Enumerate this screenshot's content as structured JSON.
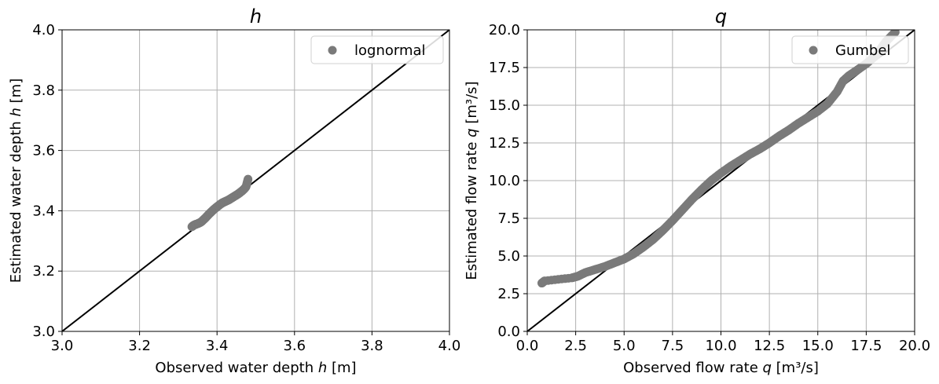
{
  "chart_data": [
    {
      "type": "scatter",
      "title": "h",
      "xlabel_pre": "Observed water depth ",
      "xlabel_var": "h",
      "xlabel_post": " [m]",
      "ylabel_pre": "Estimated water depth ",
      "ylabel_var": "h",
      "ylabel_post": " [m]",
      "xlim": [
        3.0,
        4.0
      ],
      "ylim": [
        3.0,
        4.0
      ],
      "xticks": [
        3.0,
        3.2,
        3.4,
        3.6,
        3.8,
        4.0
      ],
      "yticks": [
        3.0,
        3.2,
        3.4,
        3.6,
        3.8,
        4.0
      ],
      "tick_labels_x": [
        "3.0",
        "3.2",
        "3.4",
        "3.6",
        "3.8",
        "4.0"
      ],
      "tick_labels_y": [
        "3.0",
        "3.2",
        "3.4",
        "3.6",
        "3.8",
        "4.0"
      ],
      "grid": true,
      "legend": {
        "label": "lognormal",
        "position": "top-right"
      },
      "reference_line": {
        "x": [
          3.0,
          4.0
        ],
        "y": [
          3.0,
          4.0
        ]
      },
      "series": [
        {
          "name": "lognormal",
          "color": "#7a7a7a",
          "x": [
            3.335,
            3.34,
            3.345,
            3.35,
            3.355,
            3.36,
            3.365,
            3.37,
            3.375,
            3.38,
            3.385,
            3.39,
            3.395,
            3.4,
            3.405,
            3.41,
            3.415,
            3.42,
            3.425,
            3.43,
            3.435,
            3.44,
            3.445,
            3.45,
            3.455,
            3.46,
            3.465,
            3.47,
            3.475,
            3.48
          ],
          "y": [
            3.347,
            3.352,
            3.355,
            3.357,
            3.36,
            3.364,
            3.37,
            3.376,
            3.383,
            3.39,
            3.396,
            3.402,
            3.408,
            3.413,
            3.418,
            3.423,
            3.427,
            3.43,
            3.433,
            3.436,
            3.44,
            3.444,
            3.448,
            3.452,
            3.456,
            3.461,
            3.466,
            3.472,
            3.48,
            3.505
          ]
        }
      ]
    },
    {
      "type": "scatter",
      "title": "q",
      "xlabel_pre": "Observed flow rate ",
      "xlabel_var": "q",
      "xlabel_post": " [m³/s]",
      "ylabel_pre": "Estimated flow rate ",
      "ylabel_var": "q",
      "ylabel_post": " [m³/s]",
      "xlim": [
        0.0,
        20.0
      ],
      "ylim": [
        0.0,
        20.0
      ],
      "xticks": [
        0.0,
        2.5,
        5.0,
        7.5,
        10.0,
        12.5,
        15.0,
        17.5,
        20.0
      ],
      "yticks": [
        0.0,
        2.5,
        5.0,
        7.5,
        10.0,
        12.5,
        15.0,
        17.5,
        20.0
      ],
      "tick_labels_x": [
        "0.0",
        "2.5",
        "5.0",
        "7.5",
        "10.0",
        "12.5",
        "15.0",
        "17.5",
        "20.0"
      ],
      "tick_labels_y": [
        "0.0",
        "2.5",
        "5.0",
        "7.5",
        "10.0",
        "12.5",
        "15.0",
        "17.5",
        "20.0"
      ],
      "grid": true,
      "legend": {
        "label": "Gumbel",
        "position": "top-right"
      },
      "reference_line": {
        "x": [
          0.0,
          20.0
        ],
        "y": [
          0.0,
          20.0
        ]
      },
      "series": [
        {
          "name": "Gumbel",
          "color": "#7a7a7a",
          "x": [
            0.75,
            0.9,
            2.3,
            2.6,
            3.0,
            3.5,
            4.0,
            4.5,
            5.0,
            5.5,
            6.0,
            6.5,
            7.0,
            7.5,
            8.0,
            8.5,
            9.0,
            9.5,
            10.0,
            10.5,
            11.0,
            11.5,
            12.0,
            12.5,
            13.0,
            13.5,
            14.0,
            14.5,
            15.0,
            15.5,
            16.0,
            16.3,
            16.6,
            17.0,
            17.5,
            18.0,
            18.5,
            19.0
          ],
          "y": [
            3.2,
            3.35,
            3.55,
            3.65,
            3.9,
            4.1,
            4.3,
            4.55,
            4.8,
            5.15,
            5.6,
            6.1,
            6.7,
            7.35,
            8.05,
            8.75,
            9.4,
            10.0,
            10.5,
            10.95,
            11.35,
            11.75,
            12.1,
            12.5,
            12.95,
            13.35,
            13.8,
            14.2,
            14.6,
            15.1,
            15.9,
            16.6,
            16.95,
            17.3,
            17.75,
            18.3,
            19.2,
            19.85
          ]
        }
      ]
    }
  ]
}
